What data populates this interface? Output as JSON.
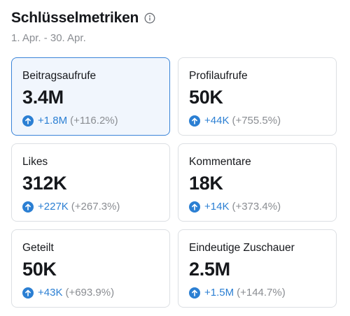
{
  "header": {
    "title": "Schlüsselmetriken",
    "date_range": "1. Apr. - 30. Apr."
  },
  "colors": {
    "accent": "#2b7fd3",
    "active_border": "#3a84d8",
    "active_bg": "#f1f6fd",
    "muted": "#8a8d92"
  },
  "icons": {
    "info": "info-circle-icon",
    "trend": "arrow-up-circle-icon"
  },
  "metrics": [
    {
      "label": "Beitragsaufrufe",
      "value": "3.4M",
      "delta": "+1.8M",
      "pct": "(+116.2%)",
      "active": true
    },
    {
      "label": "Profilaufrufe",
      "value": "50K",
      "delta": "+44K",
      "pct": "(+755.5%)"
    },
    {
      "label": "Likes",
      "value": "312K",
      "delta": "+227K",
      "pct": "(+267.3%)"
    },
    {
      "label": "Kommentare",
      "value": "18K",
      "delta": "+14K",
      "pct": "(+373.4%)"
    },
    {
      "label": "Geteilt",
      "value": "50K",
      "delta": "+43K",
      "pct": "(+693.9%)"
    },
    {
      "label": "Eindeutige Zuschauer",
      "value": "2.5M",
      "delta": "+1.5M",
      "pct": "(+144.7%)"
    }
  ]
}
